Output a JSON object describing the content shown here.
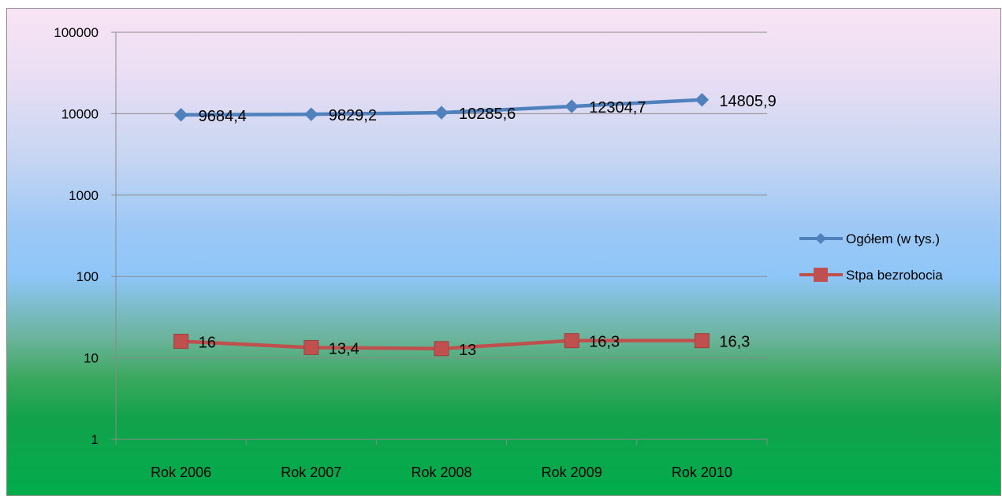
{
  "chart_data": {
    "type": "line",
    "title": "",
    "xlabel": "",
    "ylabel": "",
    "yscale": "log",
    "ylim": [
      1,
      100000
    ],
    "y_ticks": [
      "1",
      "10",
      "100",
      "1000",
      "10000",
      "100000"
    ],
    "categories": [
      "Rok 2006",
      "Rok 2007",
      "Rok 2008",
      "Rok 2009",
      "Rok 2010"
    ],
    "grid": "horizontal",
    "legend_position": "right",
    "series": [
      {
        "name": "Ogółem (w tys.)",
        "values": [
          9684.4,
          9829.2,
          10285.6,
          12304.7,
          14805.9
        ],
        "labels": [
          "9684,4",
          "9829,2",
          "10285,6",
          "12304,7",
          "14805,9"
        ],
        "color": "#4f81bd",
        "marker": "diamond"
      },
      {
        "name": "Stpa bezrobocia",
        "values": [
          16,
          13.4,
          13,
          16.3,
          16.3
        ],
        "labels": [
          "16",
          "13,4",
          "13",
          "16,3",
          "16,3"
        ],
        "color": "#c0504d",
        "marker": "square"
      }
    ]
  }
}
